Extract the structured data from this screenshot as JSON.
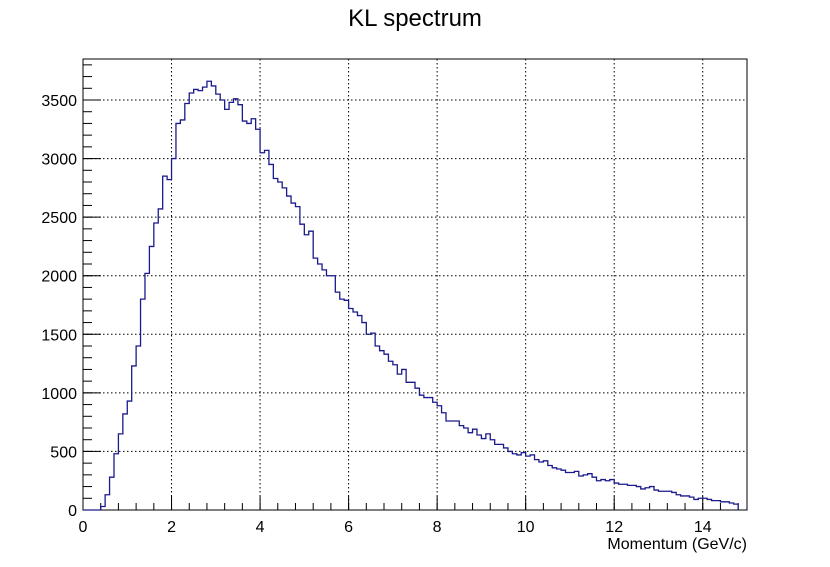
{
  "chart_data": {
    "type": "histogram",
    "title": "KL spectrum",
    "xlabel": "Momentum (GeV/c)",
    "ylabel": "",
    "xlim": [
      0,
      15
    ],
    "ylim": [
      0,
      3850
    ],
    "grid": true,
    "legend": "none",
    "line_color": "#1a1a8c",
    "bin_width": 0.1,
    "x_start": 0,
    "x_ticks": [
      "0",
      "2",
      "4",
      "6",
      "8",
      "10",
      "12",
      "14"
    ],
    "y_ticks": [
      "0",
      "500",
      "1000",
      "1500",
      "2000",
      "2500",
      "3000",
      "3500"
    ],
    "series": [
      {
        "values": [
          0,
          0,
          0,
          0,
          30,
          130,
          280,
          480,
          650,
          820,
          930,
          1230,
          1400,
          1800,
          2020,
          2250,
          2450,
          2570,
          2850,
          2820,
          3000,
          3300,
          3330,
          3470,
          3560,
          3590,
          3580,
          3610,
          3660,
          3620,
          3550,
          3500,
          3420,
          3480,
          3510,
          3460,
          3320,
          3300,
          3340,
          3250,
          3050,
          3070,
          2950,
          2830,
          2800,
          2750,
          2680,
          2620,
          2590,
          2440,
          2350,
          2380,
          2150,
          2100,
          2050,
          2000,
          2000,
          1860,
          1800,
          1790,
          1720,
          1690,
          1660,
          1600,
          1500,
          1510,
          1400,
          1360,
          1330,
          1270,
          1240,
          1160,
          1200,
          1090,
          1090,
          1040,
          980,
          960,
          960,
          920,
          890,
          830,
          760,
          760,
          760,
          720,
          700,
          660,
          690,
          640,
          610,
          650,
          600,
          560,
          560,
          530,
          500,
          480,
          470,
          490,
          460,
          470,
          430,
          410,
          420,
          380,
          360,
          350,
          340,
          320,
          320,
          330,
          290,
          300,
          310,
          280,
          250,
          260,
          250,
          260,
          230,
          220,
          220,
          210,
          210,
          200,
          180,
          190,
          200,
          170,
          160,
          160,
          160,
          150,
          130,
          120,
          120,
          110,
          90,
          100,
          100,
          90,
          80,
          80,
          70,
          70,
          60,
          50
        ]
      }
    ]
  }
}
